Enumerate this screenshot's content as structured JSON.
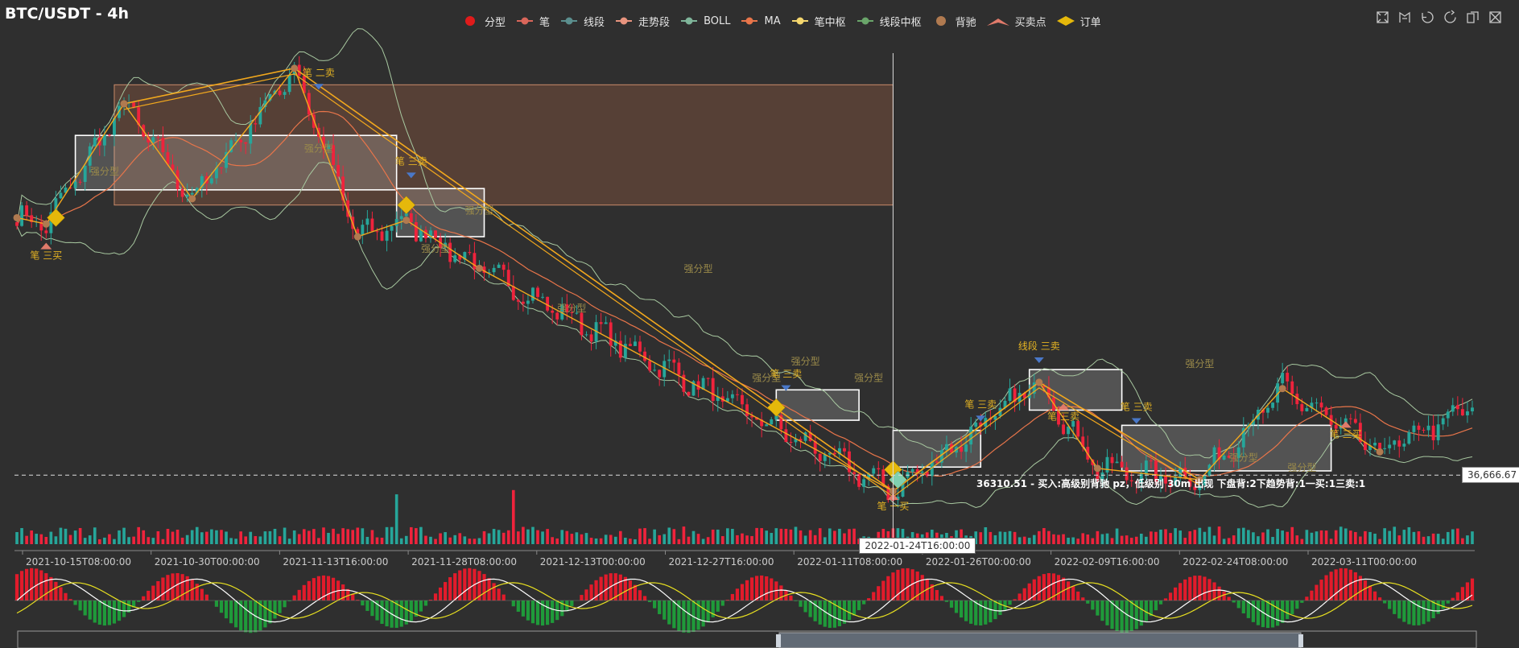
{
  "header": {
    "title": "BTC/USDT - 4h"
  },
  "legend": [
    {
      "name": "分型",
      "color": "#e01b1b",
      "icon": "circle-icon"
    },
    {
      "name": "笔",
      "color": "#d9665a",
      "icon": "line-circle-icon"
    },
    {
      "name": "线段",
      "color": "#5b8f8e",
      "icon": "line-circle-icon"
    },
    {
      "name": "走势段",
      "color": "#e8947e",
      "icon": "line-circle-icon"
    },
    {
      "name": "BOLL",
      "color": "#7fb59a",
      "icon": "line-circle-icon"
    },
    {
      "name": "MA",
      "color": "#e8754a",
      "icon": "line-circle-icon"
    },
    {
      "name": "笔中枢",
      "color": "#f5d76e",
      "icon": "line-circle-icon"
    },
    {
      "name": "线段中枢",
      "color": "#6aa56a",
      "icon": "line-circle-icon"
    },
    {
      "name": "背驰",
      "color": "#b07a50",
      "icon": "circle-icon"
    },
    {
      "name": "买卖点",
      "color": "#e07a6a",
      "icon": "arrow-icon"
    },
    {
      "name": "订单",
      "color": "#e5b80b",
      "icon": "diamond-icon"
    }
  ],
  "toolbox": [
    {
      "name": "zoom-icon"
    },
    {
      "name": "zoom-reset-icon"
    },
    {
      "name": "restore-icon"
    },
    {
      "name": "refresh-icon"
    },
    {
      "name": "data-view-icon"
    },
    {
      "name": "save-image-icon"
    }
  ],
  "colors": {
    "up": "#26a69a",
    "down": "#ef233c",
    "bi": "#f2a81d",
    "boll": "#a8c8a0",
    "ma": "#e8754a",
    "zs": "#ffffff",
    "seg_zs": "#b06a4a"
  },
  "chart_data": {
    "type": "candlestick",
    "title": "BTC/USDT - 4h",
    "x_ticks": [
      "2021-10-15T08:00:00",
      "2021-10-30T00:00:00",
      "2021-11-13T16:00:00",
      "2021-11-28T08:00:00",
      "2021-12-13T00:00:00",
      "2021-12-27T16:00:00",
      "2022-01-11T08:00:00",
      "2022-01-26T00:00:00",
      "2022-02-09T16:00:00",
      "2022-02-24T08:00:00",
      "2022-03-11T00:00:00"
    ],
    "ylim": [
      33500,
      70000
    ],
    "last_price": 36666.67,
    "last_price_label": "36,666.67",
    "cursor_time": "2022-01-24T16:00:00",
    "grid": false,
    "legend_position": "top-center",
    "bi_points": [
      {
        "i": 0,
        "y": 57000
      },
      {
        "i": 6,
        "y": 56500
      },
      {
        "i": 22,
        "y": 66000
      },
      {
        "i": 36,
        "y": 58500
      },
      {
        "i": 57,
        "y": 68800
      },
      {
        "i": 70,
        "y": 55500
      },
      {
        "i": 80,
        "y": 56800
      },
      {
        "i": 95,
        "y": 53000
      },
      {
        "i": 180,
        "y": 35400
      },
      {
        "i": 210,
        "y": 44000
      },
      {
        "i": 222,
        "y": 37200
      },
      {
        "i": 243,
        "y": 36300
      },
      {
        "i": 260,
        "y": 43500
      },
      {
        "i": 280,
        "y": 38500
      }
    ],
    "segment_points": [
      {
        "i": 22,
        "y": 66000
      },
      {
        "i": 57,
        "y": 68800
      },
      {
        "i": 180,
        "y": 35400
      },
      {
        "i": 210,
        "y": 44000
      },
      {
        "i": 243,
        "y": 36300
      }
    ],
    "bi_zhongshu": [
      {
        "i0": 12,
        "i1": 78,
        "y0": 59200,
        "y1": 63500
      },
      {
        "i0": 78,
        "i1": 96,
        "y0": 55500,
        "y1": 59300
      },
      {
        "i0": 156,
        "i1": 173,
        "y0": 41000,
        "y1": 43400
      },
      {
        "i0": 180,
        "i1": 198,
        "y0": 37300,
        "y1": 40200
      },
      {
        "i0": 208,
        "i1": 227,
        "y0": 41800,
        "y1": 45000
      },
      {
        "i0": 227,
        "i1": 270,
        "y0": 37000,
        "y1": 40600
      }
    ],
    "segment_zhongshu": [
      {
        "i0": 20,
        "i1": 180,
        "y0": 58000,
        "y1": 67500
      }
    ],
    "signals": [
      {
        "label": "笔 三买",
        "i": 6,
        "y": 54000,
        "pos": "below"
      },
      {
        "label": "笔 二卖",
        "i": 62,
        "y": 68200,
        "pos": "above"
      },
      {
        "label": "笔 三卖",
        "i": 81,
        "y": 61200,
        "pos": "above"
      },
      {
        "label": "笔 三卖",
        "i": 158,
        "y": 44400,
        "pos": "above"
      },
      {
        "label": "笔 一买",
        "i": 180,
        "y": 34200,
        "pos": "below"
      },
      {
        "label": "笔 三卖",
        "i": 198,
        "y": 42000,
        "pos": "above"
      },
      {
        "label": "线段 三卖",
        "i": 210,
        "y": 46600,
        "pos": "above"
      },
      {
        "label": "笔 三卖",
        "i": 215,
        "y": 41300,
        "pos": "below"
      },
      {
        "label": "笔 三卖",
        "i": 230,
        "y": 41800,
        "pos": "above"
      },
      {
        "label": "笔 三买",
        "i": 273,
        "y": 39900,
        "pos": "below"
      }
    ],
    "strong_fractal_label": "强分型",
    "strong_fractals": [
      {
        "i": 18,
        "y": 60400
      },
      {
        "i": 62,
        "y": 62200
      },
      {
        "i": 86,
        "y": 54300
      },
      {
        "i": 95,
        "y": 57300
      },
      {
        "i": 114,
        "y": 49600
      },
      {
        "i": 140,
        "y": 52700
      },
      {
        "i": 154,
        "y": 44100
      },
      {
        "i": 162,
        "y": 45400
      },
      {
        "i": 175,
        "y": 44100
      },
      {
        "i": 243,
        "y": 45200
      },
      {
        "i": 252,
        "y": 37800
      },
      {
        "i": 264,
        "y": 37000
      }
    ],
    "orders": [
      {
        "i": 8,
        "y": 57000
      },
      {
        "i": 80,
        "y": 58000
      },
      {
        "i": 156,
        "y": 42000
      },
      {
        "i": 180,
        "y": 37100
      },
      {
        "i": 181,
        "y": 36300
      }
    ],
    "order_note": "36310.51 - 买入:高级别背驰 pz，低级别 30m 出现 下盘背:2下趋势背:1一买:1三卖:1"
  }
}
